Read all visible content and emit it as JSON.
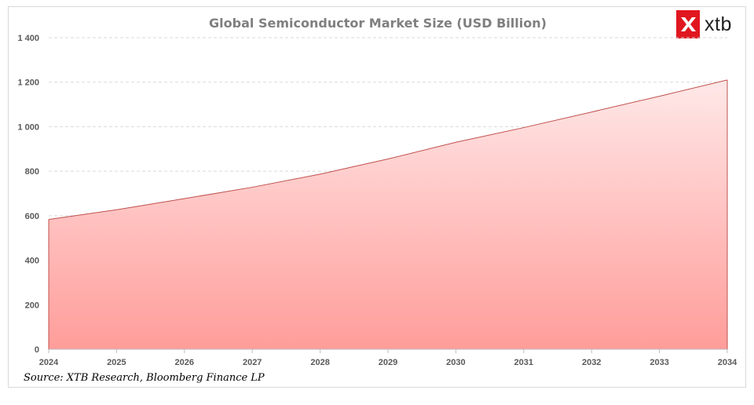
{
  "brand": {
    "logo_text": "xtb",
    "logo_color": "#e0171f",
    "logo_icon": "x-mark-icon"
  },
  "source": "Source: XTB Research, Bloomberg Finance LP",
  "chart_data": {
    "type": "area",
    "title": "Global Semiconductor Market Size (USD Billion)",
    "xlabel": "",
    "ylabel": "",
    "x": [
      "2024",
      "2025",
      "2026",
      "2027",
      "2028",
      "2029",
      "2030",
      "2031",
      "2032",
      "2033",
      "2034"
    ],
    "series": [
      {
        "values": [
          583,
          627,
          677,
          728,
          787,
          855,
          930,
          996,
          1066,
          1137,
          1210
        ]
      }
    ],
    "ylim": [
      0,
      1400
    ],
    "yticks": [
      0,
      200,
      400,
      600,
      800,
      1000,
      1200,
      1400
    ],
    "ytick_labels": [
      "0",
      "200",
      "400",
      "600",
      "800",
      "1 000",
      "1 200",
      "1 400"
    ],
    "grid": true,
    "colors": {
      "line": "#c0504d",
      "fill_top": "#ffe8e8",
      "fill_bottom": "#ff9d9a",
      "grid": "#d9d9d9"
    }
  }
}
